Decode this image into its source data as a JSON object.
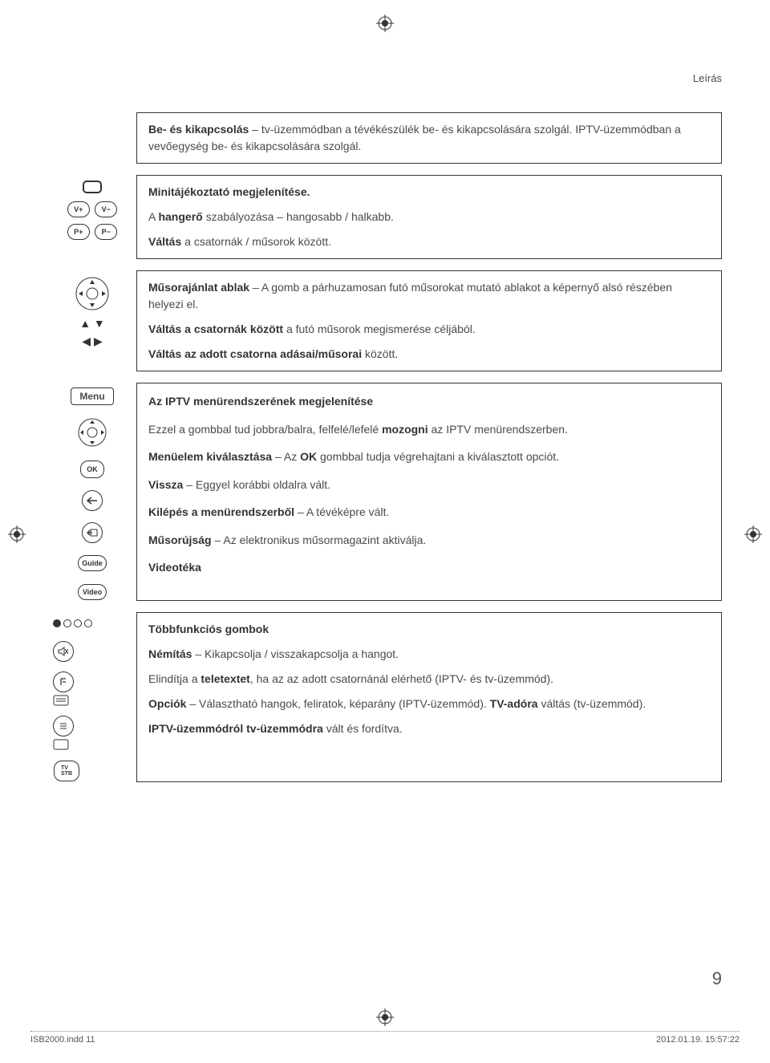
{
  "header": {
    "section_title": "Leírás"
  },
  "colors": {
    "text": "#4a4a4a",
    "border": "#333333",
    "background": "#ffffff"
  },
  "buttons": {
    "v_plus": "V+",
    "v_minus": "V−",
    "p_plus": "P+",
    "p_minus": "P−",
    "ok": "OK",
    "guide": "Guide",
    "video": "Video",
    "menu": "Menu",
    "tv_stb": "TV\nSTB"
  },
  "rows": [
    {
      "id": "power",
      "paragraphs": [
        "<b>Be- és kikapcsolás</b> – tv-üzemmódban a tévékészülék be- és kikapcsolására szolgál. IPTV-üzemmódban a vevőegység  be- és kikapcsolására szolgál."
      ]
    },
    {
      "id": "display-vol",
      "paragraphs": [
        "<b>Minitájékoztató megjelenítése.</b>",
        "A <b>hangerő</b> szabályozása – hangosabb / halkabb.",
        "<b>Váltás</b> a csatornák / műsorok között."
      ]
    },
    {
      "id": "arrows",
      "paragraphs": [
        "<b>Műsorajánlat ablak</b> – A gomb a párhuzamosan futó műsorokat mutató ablakot a képernyő alsó részében helyezi el.",
        "<b>Váltás a csatornák között</b> a futó műsorok megismerése céljából.",
        "<b>Váltás az adott csatorna adásai/műsorai</b> között."
      ]
    },
    {
      "id": "menu",
      "paragraphs": [
        "<b>Az IPTV menürendszerének megjelenítése</b>",
        "Ezzel a gombbal tud jobbra/balra, felfelé/lefelé <b>mozogni</b> az IPTV menürendszerben.",
        "<b>Menüelem kiválasztása</b> – Az <b>OK</b> gombbal tudja végrehajtani a kiválasztott opciót.",
        "<b>Vissza</b> – Eggyel korábbi oldalra vált.",
        "<b>Kilépés a menürendszerből</b> – A tévéképre vált.",
        "<b>Műsorújság</b> – Az elektronikus műsormagazint aktiválja.",
        "<b>Videotéka</b>"
      ]
    },
    {
      "id": "multi",
      "paragraphs": [
        "<b>Többfunkciós gombok</b>",
        "<b>Némítás</b> – Kikapcsolja / visszakapcsolja a hangot.",
        "Elindítja a <b>teletextet</b>, ha az az adott csatornánál elérhető (IPTV- és tv-üzemmód).",
        "<b>Opciók</b> – Választható hangok, feliratok, képarány (IPTV-üzemmód). <b>TV-adóra</b> váltás (tv-üzemmód).",
        "<b>IPTV-üzemmódról tv-üzemmódra</b> vált és fordítva."
      ]
    }
  ],
  "page_number": "9",
  "footer": {
    "filename": "ISB2000.indd   11",
    "date": "2012.01.19.   15:57:22"
  }
}
